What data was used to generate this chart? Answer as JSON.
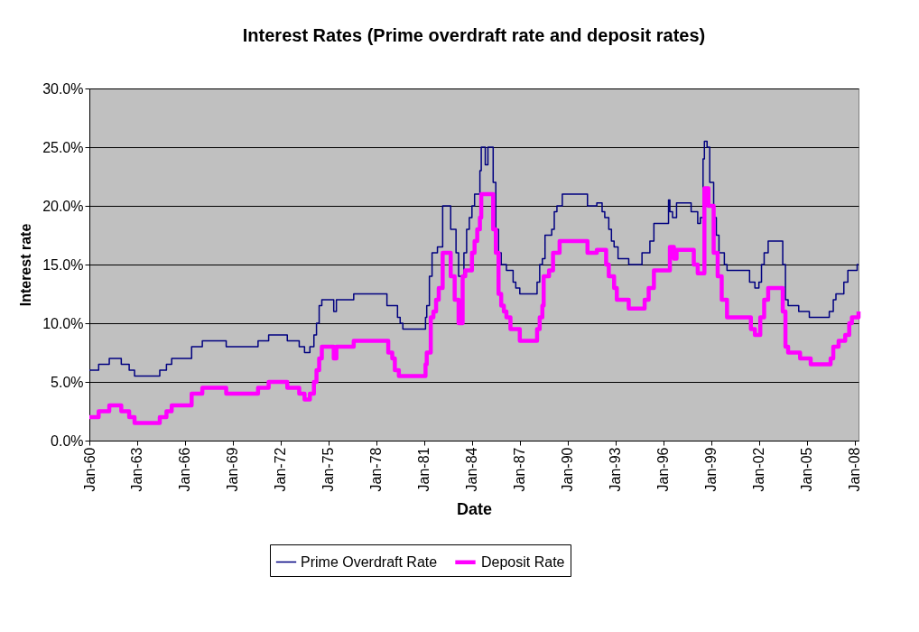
{
  "chart_data": {
    "type": "step",
    "title": "Interest Rates (Prime overdraft rate and deposit rates)",
    "xlabel": "Date",
    "ylabel": "Interest rate",
    "xlim": [
      "1960-01",
      "2008-04"
    ],
    "xticks": [
      {
        "value": "1960-01",
        "label": "Jan-60"
      },
      {
        "value": "1963-01",
        "label": "Jan-63"
      },
      {
        "value": "1966-01",
        "label": "Jan-66"
      },
      {
        "value": "1969-01",
        "label": "Jan-69"
      },
      {
        "value": "1972-01",
        "label": "Jan-72"
      },
      {
        "value": "1975-01",
        "label": "Jan-75"
      },
      {
        "value": "1978-01",
        "label": "Jan-78"
      },
      {
        "value": "1981-01",
        "label": "Jan-81"
      },
      {
        "value": "1984-01",
        "label": "Jan-84"
      },
      {
        "value": "1987-01",
        "label": "Jan-87"
      },
      {
        "value": "1990-01",
        "label": "Jan-90"
      },
      {
        "value": "1993-01",
        "label": "Jan-93"
      },
      {
        "value": "1996-01",
        "label": "Jan-96"
      },
      {
        "value": "1999-01",
        "label": "Jan-99"
      },
      {
        "value": "2002-01",
        "label": "Jan-02"
      },
      {
        "value": "2005-01",
        "label": "Jan-05"
      },
      {
        "value": "2008-01",
        "label": "Jan-08"
      }
    ],
    "ylim": [
      0,
      30
    ],
    "yticks": [
      {
        "value": 0,
        "label": "0.0%"
      },
      {
        "value": 5,
        "label": "5.0%"
      },
      {
        "value": 10,
        "label": "10.0%"
      },
      {
        "value": 15,
        "label": "15.0%"
      },
      {
        "value": 20,
        "label": "20.0%"
      },
      {
        "value": 25,
        "label": "25.0%"
      },
      {
        "value": 30,
        "label": "30.0%"
      }
    ],
    "grid": "y",
    "legend": "bottom",
    "series": [
      {
        "name": "Prime Overdraft Rate",
        "color": "#000080",
        "x": [
          "1960-01",
          "1960-08",
          "1961-04",
          "1962-01",
          "1962-07",
          "1962-11",
          "1964-06",
          "1964-11",
          "1965-03",
          "1966-06",
          "1967-02",
          "1968-08",
          "1970-08",
          "1971-04",
          "1972-06",
          "1973-03",
          "1973-07",
          "1973-11",
          "1974-02",
          "1974-04",
          "1974-06",
          "1974-08",
          "1975-05",
          "1975-07",
          "1976-08",
          "1978-09",
          "1979-05",
          "1979-07",
          "1979-09",
          "1981-02",
          "1981-03",
          "1981-05",
          "1981-07",
          "1981-11",
          "1982-03",
          "1982-09",
          "1983-01",
          "1983-03",
          "1983-07",
          "1983-09",
          "1983-11",
          "1984-01",
          "1984-03",
          "1984-07",
          "1984-08",
          "1984-11",
          "1985-01",
          "1985-05",
          "1985-07",
          "1985-09",
          "1985-11",
          "1986-03",
          "1986-08",
          "1986-10",
          "1987-01",
          "1988-02",
          "1988-04",
          "1988-06",
          "1988-08",
          "1989-01",
          "1989-03",
          "1989-05",
          "1989-09",
          "1991-04",
          "1991-11",
          "1992-03",
          "1992-05",
          "1992-08",
          "1992-10",
          "1992-12",
          "1993-03",
          "1993-11",
          "1994-09",
          "1995-03",
          "1995-06",
          "1996-05",
          "1996-06",
          "1996-08",
          "1996-11",
          "1997-10",
          "1998-03",
          "1998-05",
          "1998-07",
          "1998-08",
          "1998-10",
          "1998-12",
          "1999-03",
          "1999-05",
          "1999-07",
          "1999-11",
          "2000-01",
          "2001-06",
          "2001-10",
          "2002-01",
          "2002-03",
          "2002-05",
          "2002-08",
          "2003-07",
          "2003-09",
          "2003-11",
          "2004-07",
          "2005-03",
          "2006-06",
          "2006-09",
          "2006-11",
          "2007-05",
          "2007-08",
          "2008-03",
          "2008-04"
        ],
        "values": [
          6.0,
          6.5,
          7.0,
          6.5,
          6.0,
          5.5,
          6.0,
          6.5,
          7.0,
          8.0,
          8.5,
          8.0,
          8.5,
          9.0,
          8.5,
          8.0,
          7.5,
          8.0,
          9.0,
          10.0,
          11.5,
          12.0,
          11.0,
          12.0,
          12.5,
          11.5,
          10.5,
          10.0,
          9.5,
          10.5,
          11.5,
          14.0,
          16.0,
          16.5,
          20.0,
          18.0,
          16.0,
          14.0,
          16.0,
          18.0,
          19.0,
          20.0,
          21.0,
          23.0,
          25.0,
          23.5,
          25.0,
          22.0,
          18.0,
          16.0,
          15.0,
          14.5,
          13.5,
          13.0,
          12.5,
          13.5,
          15.0,
          15.5,
          17.5,
          18.0,
          19.5,
          20.0,
          21.0,
          20.0,
          20.25,
          19.5,
          19.0,
          18.0,
          17.0,
          16.5,
          15.5,
          15.0,
          16.0,
          17.0,
          18.5,
          20.5,
          19.5,
          19.0,
          20.25,
          19.5,
          18.5,
          19.0,
          24.0,
          25.5,
          25.0,
          22.0,
          19.0,
          17.5,
          16.0,
          15.0,
          14.5,
          13.5,
          13.0,
          13.5,
          15.0,
          16.0,
          17.0,
          15.0,
          12.0,
          11.5,
          11.0,
          10.5,
          11.0,
          12.0,
          12.5,
          13.5,
          14.5,
          15.0,
          15.0
        ]
      },
      {
        "name": "Deposit Rate",
        "color": "#ff00ff",
        "x": [
          "1960-01",
          "1960-08",
          "1961-04",
          "1962-01",
          "1962-07",
          "1962-11",
          "1964-06",
          "1964-11",
          "1965-03",
          "1966-06",
          "1967-02",
          "1968-08",
          "1970-08",
          "1971-04",
          "1972-06",
          "1973-03",
          "1973-07",
          "1973-11",
          "1974-02",
          "1974-04",
          "1974-06",
          "1974-08",
          "1975-05",
          "1975-07",
          "1976-08",
          "1978-10",
          "1979-01",
          "1979-03",
          "1979-06",
          "1981-02",
          "1981-03",
          "1981-06",
          "1981-08",
          "1981-10",
          "1981-12",
          "1982-03",
          "1982-09",
          "1982-12",
          "1983-03",
          "1983-06",
          "1983-08",
          "1984-01",
          "1984-03",
          "1984-05",
          "1984-07",
          "1984-08",
          "1985-05",
          "1985-07",
          "1985-09",
          "1985-11",
          "1986-01",
          "1986-03",
          "1986-06",
          "1987-01",
          "1988-02",
          "1988-04",
          "1988-06",
          "1988-07",
          "1988-11",
          "1989-02",
          "1989-07",
          "1991-04",
          "1991-11",
          "1992-06",
          "1992-08",
          "1992-12",
          "1993-02",
          "1993-11",
          "1994-11",
          "1995-02",
          "1995-06",
          "1996-06",
          "1996-09",
          "1996-11",
          "1997-12",
          "1998-03",
          "1998-08",
          "1998-11",
          "1999-03",
          "1999-06",
          "1999-09",
          "2000-01",
          "2001-07",
          "2001-10",
          "2002-02",
          "2002-05",
          "2002-08",
          "2003-07",
          "2003-09",
          "2003-11",
          "2004-08",
          "2005-04",
          "2006-07",
          "2006-09",
          "2007-01",
          "2007-06",
          "2007-09",
          "2007-11",
          "2008-04"
        ],
        "values": [
          2.0,
          2.5,
          3.0,
          2.5,
          2.0,
          1.5,
          2.0,
          2.5,
          3.0,
          4.0,
          4.5,
          4.0,
          4.5,
          5.0,
          4.5,
          4.0,
          3.5,
          4.0,
          5.0,
          6.0,
          7.0,
          8.0,
          7.0,
          8.0,
          8.5,
          7.5,
          7.0,
          6.0,
          5.5,
          6.5,
          7.5,
          10.5,
          11.0,
          12.0,
          13.0,
          16.0,
          14.0,
          12.0,
          10.0,
          14.0,
          14.5,
          16.0,
          17.0,
          18.0,
          19.0,
          21.0,
          18.0,
          16.0,
          12.5,
          11.5,
          11.0,
          10.5,
          9.5,
          8.5,
          9.5,
          10.5,
          11.5,
          14.0,
          14.5,
          16.0,
          17.0,
          16.0,
          16.25,
          15.0,
          14.0,
          13.0,
          12.0,
          11.25,
          12.0,
          13.0,
          14.5,
          16.5,
          15.5,
          16.25,
          15.0,
          14.25,
          21.5,
          20.0,
          16.0,
          14.0,
          12.0,
          10.5,
          9.5,
          9.0,
          10.5,
          12.0,
          13.0,
          11.0,
          8.0,
          7.5,
          7.0,
          6.5,
          7.0,
          8.0,
          8.5,
          9.0,
          10.0,
          10.5,
          11.0
        ]
      }
    ]
  }
}
